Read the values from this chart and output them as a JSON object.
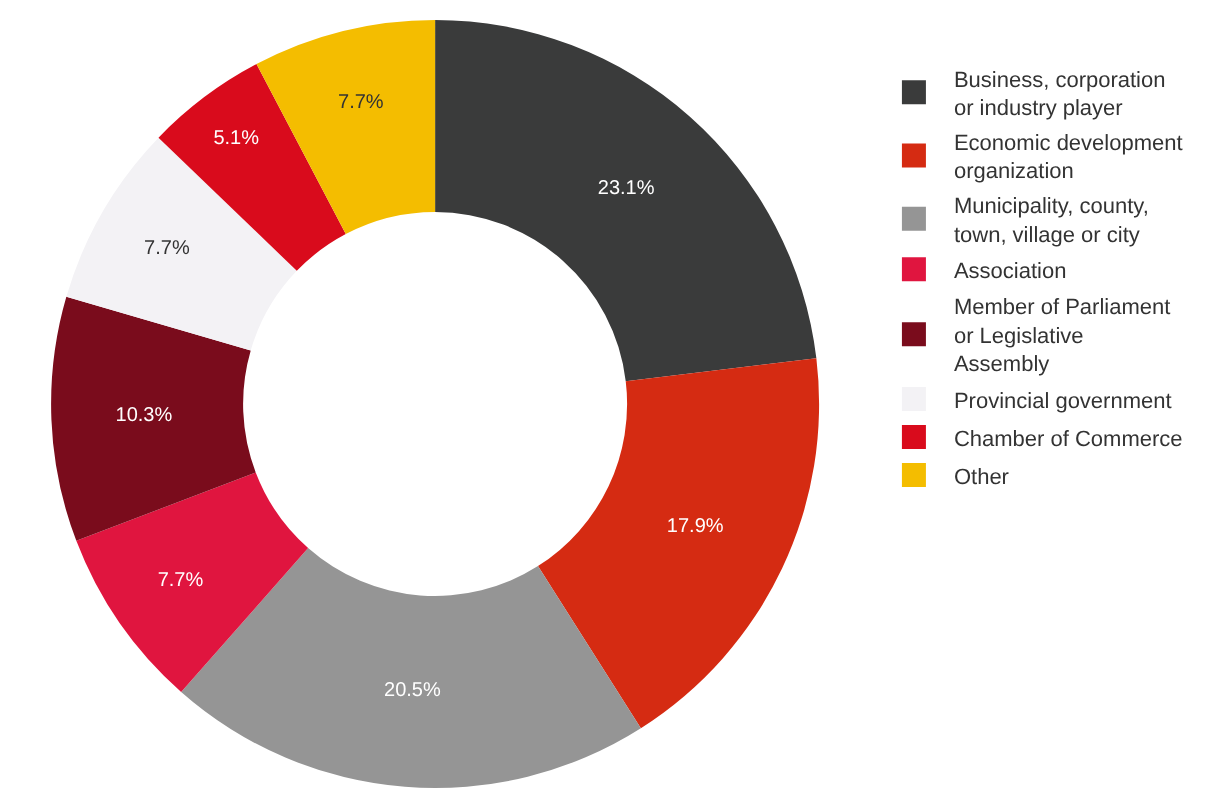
{
  "chart_data": {
    "type": "donut",
    "categories": [
      "Business, corporation or industry player",
      "Economic development organization",
      "Municipality, county, town, village or city",
      "Association",
      "Member of Parliament or Legislative Assembly",
      "Provincial government",
      "Chamber of Commerce",
      "Other"
    ],
    "values": [
      23.1,
      17.9,
      20.5,
      7.7,
      10.3,
      7.7,
      5.1,
      7.7
    ],
    "value_labels": [
      "23.1%",
      "17.9%",
      "20.5%",
      "7.7%",
      "10.3%",
      "7.7%",
      "5.1%",
      "7.7%"
    ],
    "colors": [
      "#3a3b3b",
      "#d52b12",
      "#959595",
      "#e0153f",
      "#7a0c1c",
      "#f3f2f5",
      "#d90b1c",
      "#f4bd00"
    ],
    "legend": "right"
  }
}
